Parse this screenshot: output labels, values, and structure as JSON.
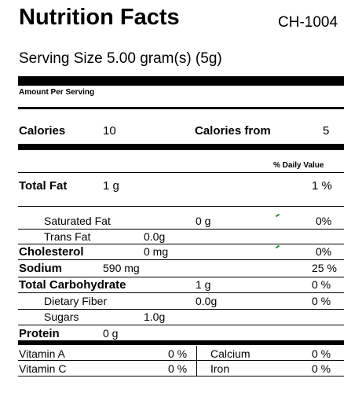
{
  "header": {
    "title": "Nutrition Facts",
    "code": "CH-1004"
  },
  "serving": {
    "label": "Serving Size 5.00 gram(s) (5g)"
  },
  "amount_per_serving": "Amount Per Serving",
  "calories": {
    "label": "Calories",
    "value": "10",
    "from_label": "Calories from",
    "from_value": "5"
  },
  "daily_value_header": "% Daily Value",
  "nutrients": {
    "total_fat": {
      "label": "Total Fat",
      "amount": "1 g",
      "dv": "1 %"
    },
    "sat_fat": {
      "label": "Saturated Fat",
      "amount": "0 g",
      "dv": "0%"
    },
    "trans_fat": {
      "label": "Trans Fat",
      "amount": "0.0g"
    },
    "cholesterol": {
      "label": "Cholesterol",
      "amount": "0 mg",
      "dv": "0%"
    },
    "sodium": {
      "label": "Sodium",
      "amount": "590 mg",
      "dv": "25 %"
    },
    "total_carb": {
      "label": "Total Carbohydrate",
      "amount": "1 g",
      "dv": "0 %"
    },
    "fiber": {
      "label": "Dietary Fiber",
      "amount": "0.0g",
      "dv": "0 %"
    },
    "sugars": {
      "label": "Sugars",
      "amount": "1.0g"
    },
    "protein": {
      "label": "Protein",
      "amount": "0 g"
    }
  },
  "vitamins": {
    "vitamin_a": {
      "label": "Vitamin A",
      "dv": "0 %"
    },
    "calcium": {
      "label": "Calcium",
      "dv": "0 %"
    },
    "vitamin_c": {
      "label": "Vitamin C",
      "dv": "0 %"
    },
    "iron": {
      "label": "Iron",
      "dv": "0 %"
    }
  }
}
